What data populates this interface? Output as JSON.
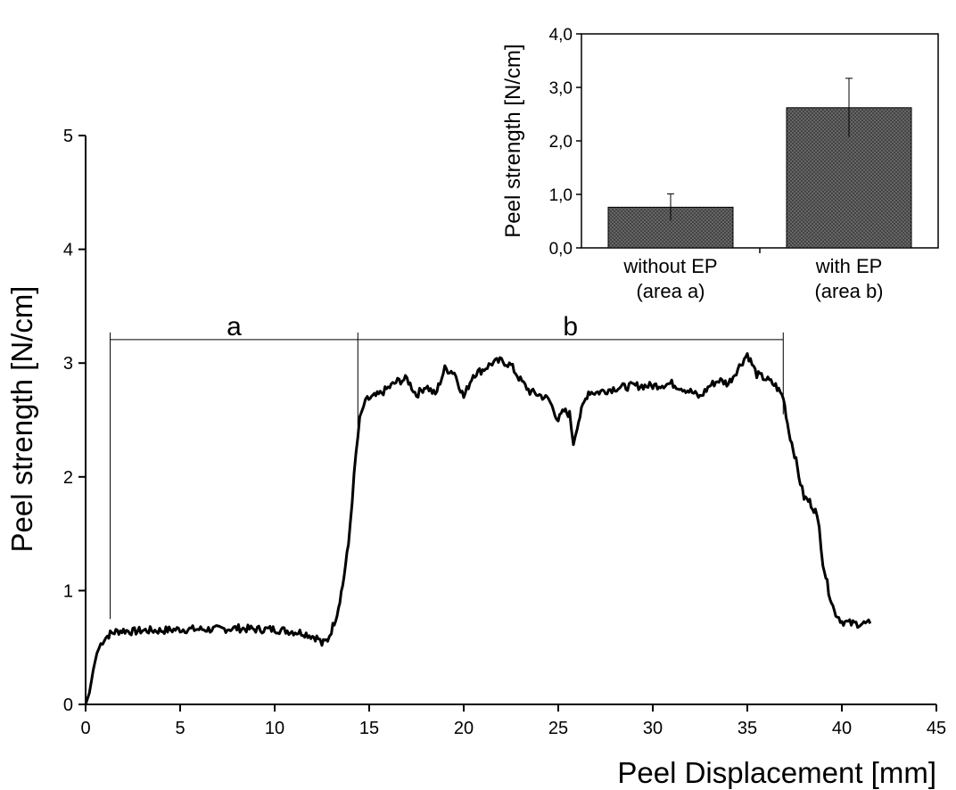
{
  "chart_data": [
    {
      "type": "line",
      "xlabel": "Peel Displacement [mm]",
      "ylabel": "Peel strength [N/cm]",
      "xlim": [
        0,
        45
      ],
      "ylim": [
        0,
        5
      ],
      "xticks": [
        0,
        5,
        10,
        15,
        20,
        25,
        30,
        35,
        40,
        45
      ],
      "yticks": [
        0,
        1,
        2,
        3,
        4,
        5
      ],
      "grid": false,
      "series": [
        {
          "color": "#000000",
          "x": [
            0,
            0.2,
            0.4,
            0.6,
            0.8,
            1.0,
            1.3,
            1.6,
            2.0,
            2.5,
            3,
            4,
            5,
            6,
            7,
            8,
            9,
            10,
            11,
            11.5,
            12,
            12.3,
            12.5,
            12.8,
            13.0,
            13.3,
            13.6,
            13.9,
            14.1,
            14.3,
            14.5,
            14.7,
            14.9,
            15.2,
            15.5,
            16,
            16.5,
            17,
            17.5,
            18,
            18.5,
            19,
            19.5,
            20,
            20.5,
            21,
            21.5,
            22,
            22.5,
            23,
            23.5,
            24,
            24.5,
            25,
            25.3,
            25.6,
            25.8,
            26,
            26.3,
            26.6,
            27,
            27.5,
            28,
            29,
            30,
            31,
            32,
            32.5,
            33,
            33.5,
            34,
            34.5,
            35,
            35.5,
            36,
            36.5,
            36.9,
            37.2,
            37.5,
            37.8,
            38.0,
            38.3,
            38.6,
            38.8,
            39.0,
            39.3,
            39.6,
            40.0,
            40.5,
            41,
            41.5
          ],
          "y": [
            0,
            0.1,
            0.3,
            0.45,
            0.53,
            0.58,
            0.62,
            0.64,
            0.65,
            0.64,
            0.65,
            0.65,
            0.66,
            0.66,
            0.66,
            0.67,
            0.66,
            0.66,
            0.64,
            0.63,
            0.6,
            0.58,
            0.53,
            0.57,
            0.65,
            0.8,
            1.05,
            1.4,
            1.8,
            2.2,
            2.5,
            2.62,
            2.68,
            2.7,
            2.72,
            2.78,
            2.84,
            2.86,
            2.72,
            2.8,
            2.72,
            2.95,
            2.92,
            2.7,
            2.9,
            2.94,
            3.0,
            3.02,
            2.98,
            2.85,
            2.75,
            2.72,
            2.68,
            2.5,
            2.58,
            2.55,
            2.3,
            2.45,
            2.62,
            2.75,
            2.74,
            2.76,
            2.78,
            2.8,
            2.8,
            2.82,
            2.75,
            2.7,
            2.8,
            2.85,
            2.82,
            2.95,
            3.08,
            2.9,
            2.86,
            2.8,
            2.7,
            2.4,
            2.2,
            1.95,
            1.82,
            1.78,
            1.7,
            1.55,
            1.25,
            1.0,
            0.82,
            0.73,
            0.71,
            0.71,
            0.71
          ]
        }
      ],
      "regions": [
        {
          "label": "a",
          "x_start": 1.3,
          "x_end": 14.4,
          "y": 3.3
        },
        {
          "label": "b",
          "x_start": 14.4,
          "x_end": 36.9,
          "y": 3.3
        }
      ]
    },
    {
      "type": "bar",
      "ylabel": "Peel strength [N/cm]",
      "ylim": [
        0,
        4
      ],
      "yticks": [
        "0,0",
        "1,0",
        "2,0",
        "3,0",
        "4,0"
      ],
      "categories": [
        [
          "without EP",
          "(area a)"
        ],
        [
          "with EP",
          "(area b)"
        ]
      ],
      "values": [
        0.76,
        2.62
      ],
      "error": [
        0.25,
        0.55
      ],
      "bar_color": "#5c5c5c",
      "grid": false
    }
  ]
}
